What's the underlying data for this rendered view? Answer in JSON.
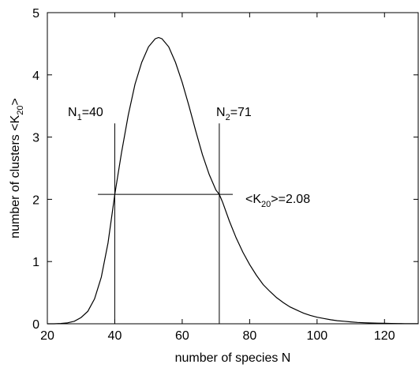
{
  "chart_data": {
    "type": "line",
    "title": "",
    "xlabel": "number of species N",
    "ylabel": {
      "main": "number of clusters <K",
      "sub": "20",
      "tail": ">"
    },
    "xlim": [
      20,
      130
    ],
    "ylim": [
      0,
      5
    ],
    "xticks": [
      20,
      40,
      60,
      80,
      100,
      120
    ],
    "yticks": [
      0,
      1,
      2,
      3,
      4,
      5
    ],
    "grid": false,
    "series": [
      {
        "x": [
          20,
          22,
          24,
          26,
          28,
          30,
          32,
          34,
          36,
          38,
          40,
          42,
          44,
          46,
          48,
          50,
          52,
          53,
          54,
          56,
          58,
          60,
          62,
          64,
          66,
          68,
          70,
          71,
          72,
          74,
          76,
          78,
          80,
          82,
          84,
          86,
          88,
          90,
          92,
          94,
          96,
          98,
          100,
          102,
          104,
          106,
          108,
          110,
          112,
          114,
          116,
          118,
          120,
          122,
          124,
          126,
          128,
          130
        ],
        "values": [
          0.0,
          0.0,
          0.005,
          0.015,
          0.04,
          0.1,
          0.2,
          0.4,
          0.75,
          1.3,
          2.08,
          2.75,
          3.35,
          3.85,
          4.2,
          4.45,
          4.58,
          4.6,
          4.58,
          4.45,
          4.2,
          3.88,
          3.5,
          3.1,
          2.72,
          2.4,
          2.15,
          2.08,
          1.95,
          1.65,
          1.38,
          1.15,
          0.95,
          0.78,
          0.63,
          0.52,
          0.42,
          0.34,
          0.27,
          0.22,
          0.17,
          0.135,
          0.105,
          0.085,
          0.065,
          0.05,
          0.04,
          0.03,
          0.022,
          0.017,
          0.013,
          0.01,
          0.007,
          0.005,
          0.004,
          0.003,
          0.002,
          0.0015
        ]
      }
    ],
    "annotations": {
      "n1": {
        "pre": "N",
        "sub": "1",
        "post": "=40",
        "x": 40
      },
      "n2": {
        "pre": "N",
        "sub": "2",
        "post": "=71",
        "x": 71
      },
      "level": {
        "pre": "<K",
        "sub": "20",
        "post": ">=2.08",
        "y": 2.08,
        "x_from": 35,
        "x_to": 75
      }
    }
  }
}
